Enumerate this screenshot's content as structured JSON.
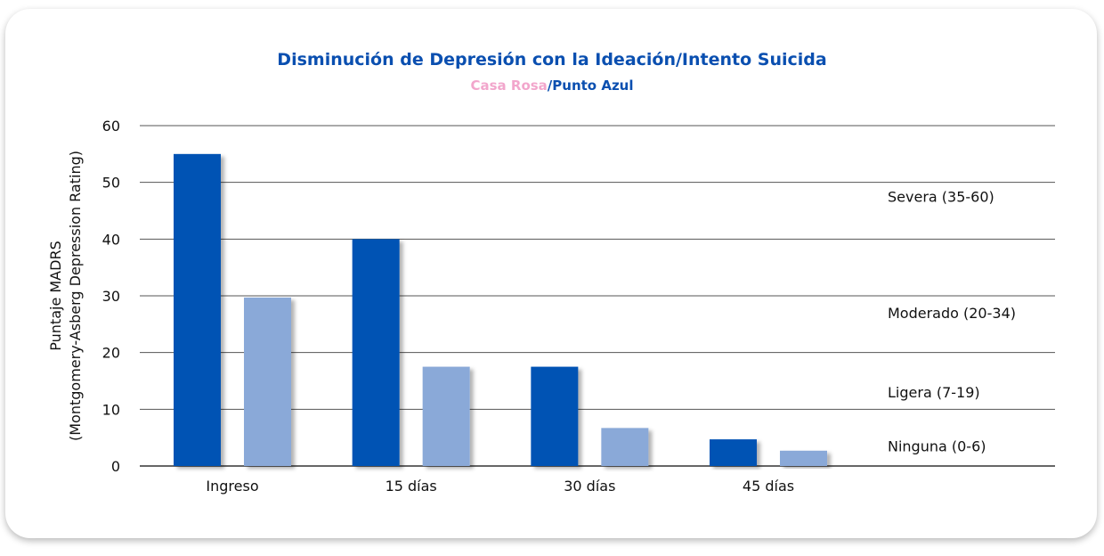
{
  "chart_data": {
    "type": "bar",
    "title": "Disminución de Depresión con la Ideación/Intento Suicida",
    "subtitle_parts": [
      "Casa Rosa",
      "/",
      "Punto Azul"
    ],
    "ylabel_lines": [
      "Puntaje MADRS",
      "(Montgomery-Asberg Depression Rating)"
    ],
    "categories": [
      "Ingreso",
      "15 días",
      "30 días",
      "45 días"
    ],
    "series": [
      {
        "values": [
          55,
          40,
          17.5,
          4.7
        ],
        "color": "#0052b4"
      },
      {
        "values": [
          29.7,
          17.5,
          6.7,
          2.7
        ],
        "color": "#8aa9d8"
      }
    ],
    "ylim": [
      0,
      60
    ],
    "yticks": [
      0,
      10,
      20,
      30,
      40,
      50,
      60
    ],
    "grid": true,
    "severity_bands": [
      {
        "label": "Severa (35-60)",
        "y": 47.5
      },
      {
        "label": "Moderado (20-34)",
        "y": 27
      },
      {
        "label": "Ligera (7-19)",
        "y": 13
      },
      {
        "label": "Ninguna (0-6)",
        "y": 3.5
      }
    ],
    "colors": {
      "title": "#0a4fb0",
      "subtitle_a": "#f2a6cc",
      "subtitle_b": "#0a4fb0",
      "grid": "#555555"
    }
  }
}
